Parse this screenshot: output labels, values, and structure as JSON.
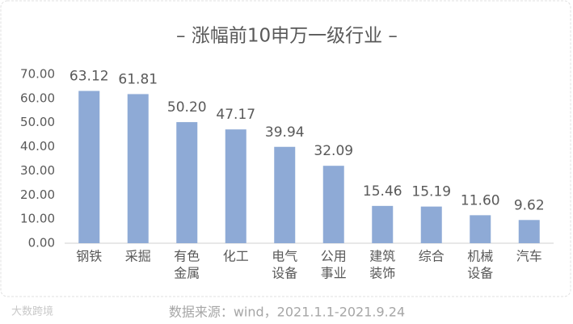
{
  "chart_data": {
    "type": "bar",
    "title": "– 涨幅前10申万一级行业 –",
    "categories": [
      [
        "钢铁"
      ],
      [
        "采掘"
      ],
      [
        "有色",
        "金属"
      ],
      [
        "化工"
      ],
      [
        "电气",
        "设备"
      ],
      [
        "公用",
        "事业"
      ],
      [
        "建筑",
        "装饰"
      ],
      [
        "综合"
      ],
      [
        "机械",
        "设备"
      ],
      [
        "汽车"
      ]
    ],
    "values": [
      63.12,
      61.81,
      50.2,
      47.17,
      39.94,
      32.09,
      15.46,
      15.19,
      11.6,
      9.62
    ],
    "value_labels": [
      "63.12",
      "61.81",
      "50.20",
      "47.17",
      "39.94",
      "32.09",
      "15.46",
      "15.19",
      "11.60",
      "9.62"
    ],
    "color": "#8eaad6",
    "ylim": [
      0,
      70
    ],
    "yticks": [
      {
        "value": 0,
        "label": "0.00"
      },
      {
        "value": 10,
        "label": "10.00"
      },
      {
        "value": 20,
        "label": "20.00"
      },
      {
        "value": 30,
        "label": "30.00"
      },
      {
        "value": 40,
        "label": "40.00"
      },
      {
        "value": 50,
        "label": "50.00"
      },
      {
        "value": 60,
        "label": "60.00"
      },
      {
        "value": 70,
        "label": "70.00"
      }
    ],
    "grid": false,
    "source": "数据来源：wind，2021.1.1-2021.9.24",
    "watermark": "大数跨境"
  }
}
